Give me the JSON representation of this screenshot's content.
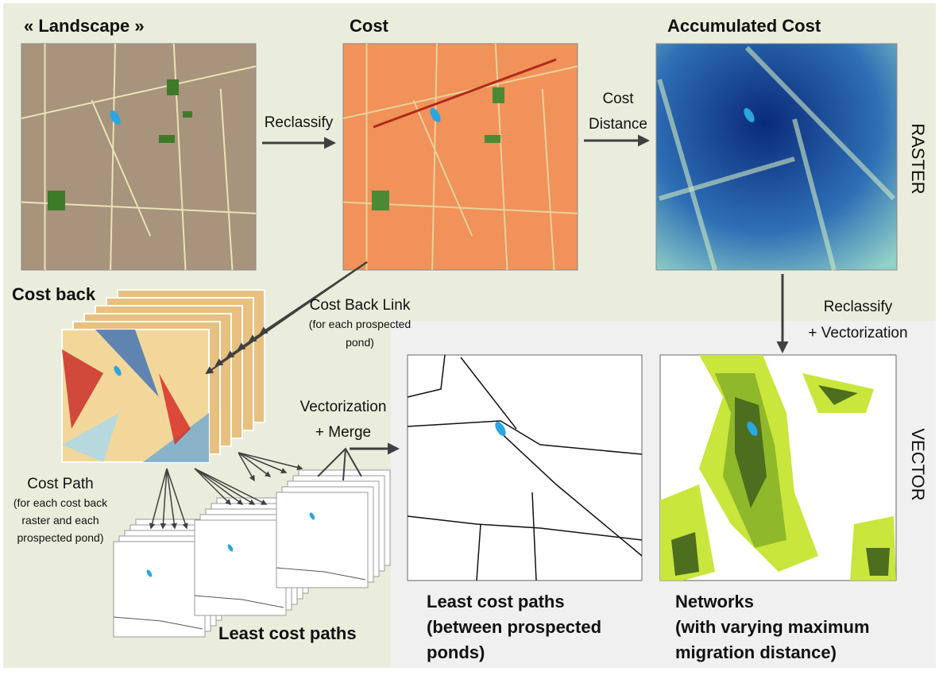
{
  "sections": {
    "raster": "RASTER",
    "vector": "VECTOR"
  },
  "panels": [
    {
      "title": "« Landscape »"
    },
    {
      "title": "Cost"
    },
    {
      "title": "Accumulated Cost"
    },
    {
      "title": "Cost back"
    },
    {
      "title": "Least cost paths"
    },
    {
      "title_lines": [
        "Least cost paths",
        "(between prospected",
        "ponds)"
      ]
    },
    {
      "title_lines": [
        "Networks",
        "(with varying maximum",
        "migration distance)"
      ]
    }
  ],
  "steps": [
    {
      "label_lines": [
        "Reclassify"
      ]
    },
    {
      "label_lines": [
        "Cost",
        "Distance"
      ]
    },
    {
      "label_lines": [
        "Cost Back Link"
      ],
      "note_lines": [
        "(for each prospected",
        "pond)"
      ]
    },
    {
      "label_lines": [
        "Reclassify",
        "+ Vectorization"
      ]
    },
    {
      "label_lines": [
        "Vectorization",
        "+ Merge"
      ]
    },
    {
      "label_lines": [
        "Cost Path"
      ],
      "note_lines": [
        "(for each cost back",
        "raster and each",
        "prospected pond)"
      ]
    }
  ]
}
